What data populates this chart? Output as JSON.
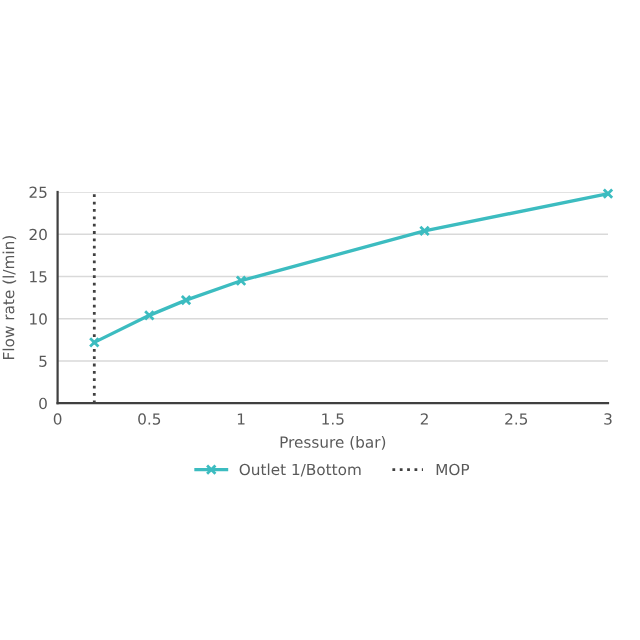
{
  "chart_data": {
    "type": "line",
    "xlabel": "Pressure (bar)",
    "ylabel": "Flow rate (l/min)",
    "x": [
      0.2,
      0.5,
      0.7,
      1,
      2,
      3
    ],
    "series": [
      {
        "name": "Outlet 1/Bottom",
        "color": "#3cbcc0",
        "values": [
          7.2,
          10.4,
          12.2,
          14.5,
          20.4,
          24.8
        ]
      }
    ],
    "xlim": [
      0,
      3
    ],
    "xticks": [
      0,
      0.5,
      1,
      1.5,
      2,
      2.5,
      3
    ],
    "ylim": [
      0,
      25
    ],
    "yticks": [
      0,
      5,
      10,
      15,
      20,
      25
    ],
    "grid": "y",
    "legend": "bottom",
    "marker": "cross",
    "line_style": "solid",
    "ref_lines": [
      {
        "axis": "x",
        "value": 0.2,
        "label": "MOP",
        "color": "#404040",
        "line_style": "dotted"
      }
    ]
  }
}
